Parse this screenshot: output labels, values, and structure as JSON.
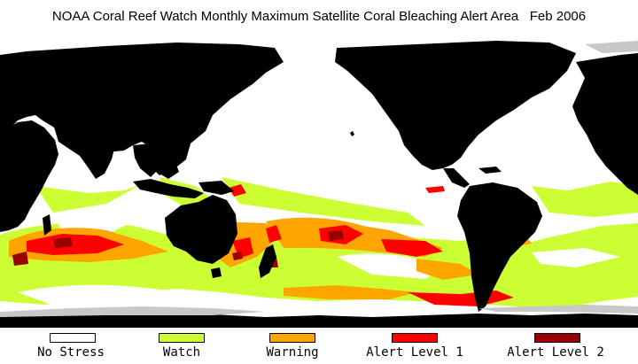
{
  "title": "NOAA Coral Reef Watch Monthly Maximum Satellite Coral Bleaching Alert Area   Feb 2006",
  "colors": {
    "land": "#000000",
    "ice": "#c8c8c8",
    "no_stress": "#ffffff",
    "watch": "#ccff33",
    "warning": "#ffa500",
    "alert1": "#ff0000",
    "alert2": "#990000"
  },
  "legend": [
    {
      "label": "No Stress",
      "color": "#ffffff"
    },
    {
      "label": "Watch",
      "color": "#ccff33"
    },
    {
      "label": "Warning",
      "color": "#ffa500"
    },
    {
      "label": "Alert Level 1",
      "color": "#ff0000"
    },
    {
      "label": "Alert Level 2",
      "color": "#990000"
    }
  ]
}
